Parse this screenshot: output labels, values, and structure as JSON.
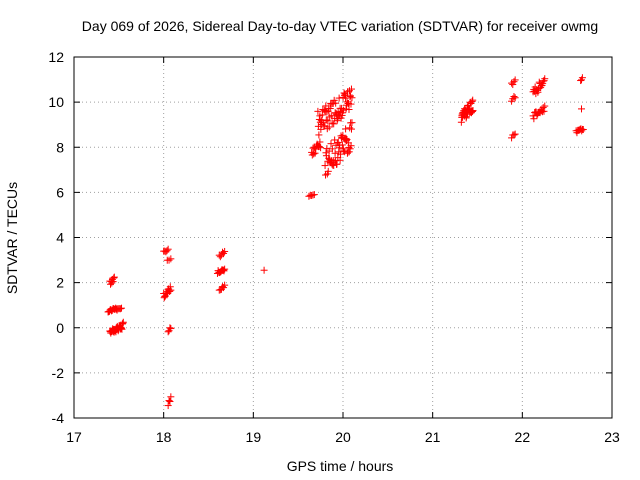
{
  "chart_data": {
    "type": "scatter",
    "title": "Day 069 of 2026, Sidereal Day-to-day VTEC variation (SDTVAR) for receiver owmg",
    "xlabel": "GPS time / hours",
    "ylabel": "SDTVAR / TECUs",
    "xlim": [
      17,
      23
    ],
    "ylim": [
      -4,
      12
    ],
    "xticks": [
      17,
      18,
      19,
      20,
      21,
      22,
      23
    ],
    "yticks": [
      -4,
      -2,
      0,
      2,
      4,
      6,
      8,
      10,
      12
    ],
    "grid": true,
    "marker": "+",
    "marker_color": "#ff0000",
    "series": [
      {
        "name": "SDTVAR",
        "clusters": [
          {
            "x0": 17.38,
            "x1": 17.48,
            "y0": 0.7,
            "y1": 0.9,
            "n": 14
          },
          {
            "x0": 17.4,
            "x1": 17.55,
            "y0": -0.35,
            "y1": 0.25,
            "n": 30
          },
          {
            "x0": 17.4,
            "x1": 17.45,
            "y0": 1.9,
            "y1": 2.25,
            "n": 8
          },
          {
            "x0": 17.48,
            "x1": 17.53,
            "y0": 0.75,
            "y1": 0.9,
            "n": 5
          },
          {
            "x0": 18.0,
            "x1": 18.05,
            "y0": 3.3,
            "y1": 3.5,
            "n": 5
          },
          {
            "x0": 18.0,
            "x1": 18.08,
            "y0": 1.3,
            "y1": 2.0,
            "n": 14
          },
          {
            "x0": 18.04,
            "x1": 18.08,
            "y0": 2.9,
            "y1": 3.1,
            "n": 3
          },
          {
            "x0": 18.05,
            "x1": 18.08,
            "y0": -0.2,
            "y1": 0.1,
            "n": 4
          },
          {
            "x0": 18.05,
            "x1": 18.08,
            "y0": -3.6,
            "y1": -3.0,
            "n": 4
          },
          {
            "x0": 18.6,
            "x1": 18.68,
            "y0": 2.4,
            "y1": 2.65,
            "n": 12
          },
          {
            "x0": 18.62,
            "x1": 18.68,
            "y0": 3.1,
            "y1": 3.45,
            "n": 6
          },
          {
            "x0": 18.62,
            "x1": 18.68,
            "y0": 1.6,
            "y1": 1.9,
            "n": 6
          },
          {
            "x0": 19.12,
            "x1": 19.12,
            "y0": 2.55,
            "y1": 2.55,
            "n": 1
          },
          {
            "x0": 19.62,
            "x1": 19.68,
            "y0": 5.8,
            "y1": 6.0,
            "n": 5
          },
          {
            "x0": 19.65,
            "x1": 19.75,
            "y0": 7.5,
            "y1": 8.3,
            "n": 14
          },
          {
            "x0": 19.72,
            "x1": 20.1,
            "y0": 8.5,
            "y1": 10.7,
            "n": 70
          },
          {
            "x0": 19.8,
            "x1": 20.1,
            "y0": 6.6,
            "y1": 9.2,
            "n": 60
          },
          {
            "x0": 21.32,
            "x1": 21.45,
            "y0": 9.0,
            "y1": 10.2,
            "n": 40
          },
          {
            "x0": 21.88,
            "x1": 21.92,
            "y0": 10.7,
            "y1": 11.0,
            "n": 4
          },
          {
            "x0": 21.88,
            "x1": 21.92,
            "y0": 10.0,
            "y1": 10.3,
            "n": 4
          },
          {
            "x0": 21.88,
            "x1": 21.92,
            "y0": 8.4,
            "y1": 8.7,
            "n": 4
          },
          {
            "x0": 22.12,
            "x1": 22.25,
            "y0": 10.2,
            "y1": 11.1,
            "n": 18
          },
          {
            "x0": 22.12,
            "x1": 22.25,
            "y0": 9.2,
            "y1": 9.9,
            "n": 16
          },
          {
            "x0": 22.6,
            "x1": 22.68,
            "y0": 8.6,
            "y1": 8.9,
            "n": 10
          },
          {
            "x0": 22.65,
            "x1": 22.67,
            "y0": 9.7,
            "y1": 9.7,
            "n": 1
          },
          {
            "x0": 22.65,
            "x1": 22.67,
            "y0": 10.9,
            "y1": 11.2,
            "n": 3
          }
        ]
      }
    ]
  }
}
